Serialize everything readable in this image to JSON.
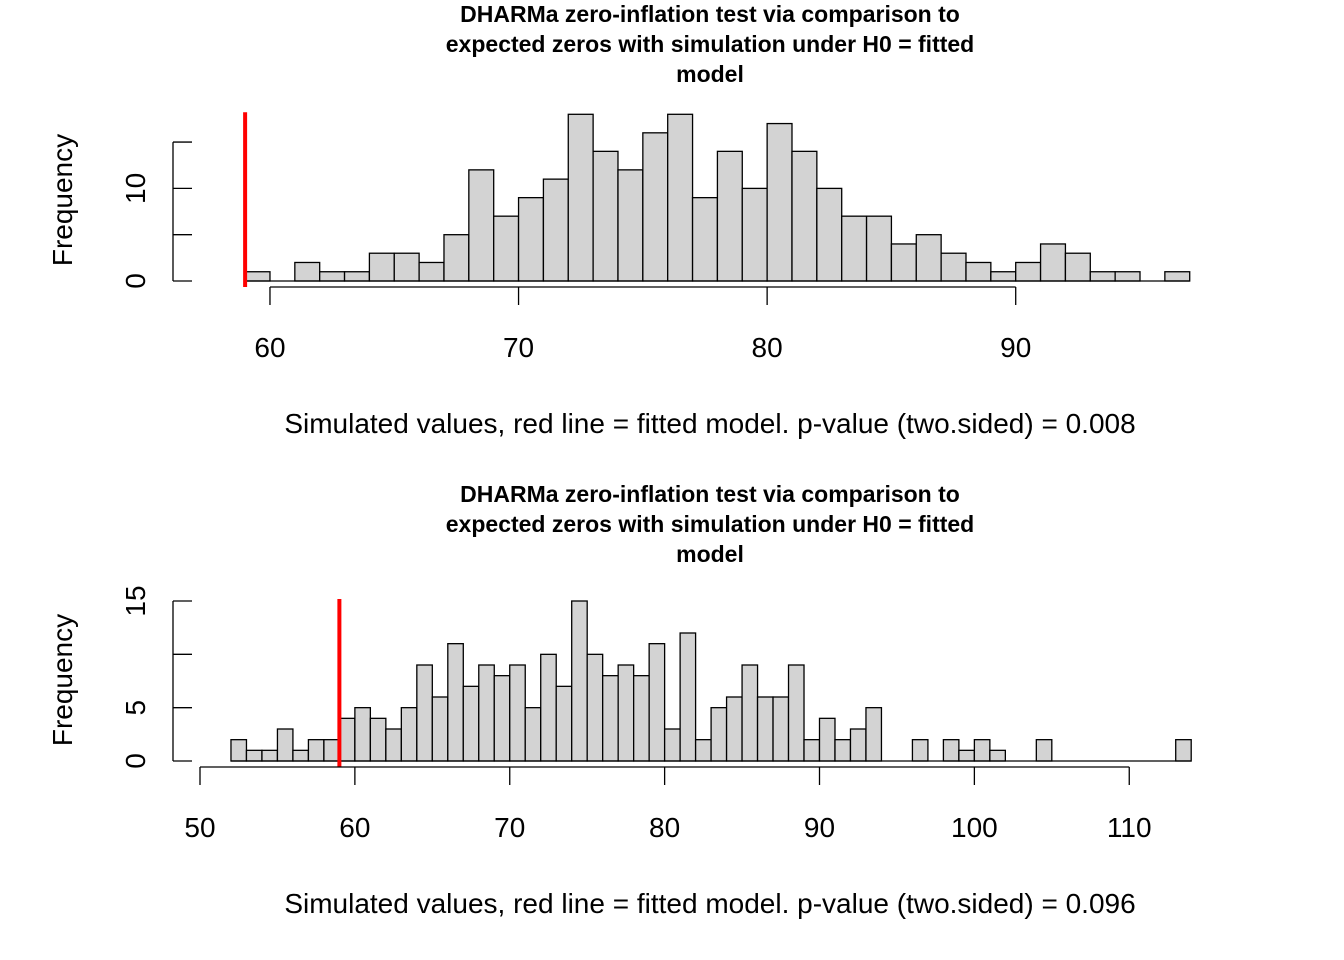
{
  "chart_data": [
    {
      "type": "bar",
      "title_lines": [
        "DHARMa zero-inflation test via comparison to",
        "expected zeros with simulation under H0 = fitted",
        "model"
      ],
      "xlabel": "Simulated values, red line = fitted model. p-value (two.sided) = 0.008",
      "ylabel": "Frequency",
      "bin_start": 59,
      "bin_width": 1,
      "values": [
        1,
        0,
        2,
        1,
        1,
        3,
        3,
        2,
        5,
        12,
        7,
        9,
        11,
        18,
        14,
        12,
        16,
        18,
        9,
        14,
        10,
        17,
        14,
        10,
        7,
        7,
        4,
        5,
        3,
        2,
        1,
        2,
        4,
        3,
        1,
        1,
        0,
        1
      ],
      "observed": 59,
      "xticks": [
        60,
        70,
        80,
        90
      ],
      "xtick_labels": [
        "60",
        "70",
        "80",
        "90"
      ],
      "yticks": [
        0,
        5,
        10,
        15
      ],
      "ytick_labels": [
        "0",
        "",
        "10",
        ""
      ],
      "xlim": [
        58.4,
        97.1
      ],
      "ylim": [
        0,
        18
      ]
    },
    {
      "type": "bar",
      "title_lines": [
        "DHARMa zero-inflation test via comparison to",
        "expected zeros with simulation under H0 = fitted",
        "model"
      ],
      "xlabel": "Simulated values, red line = fitted model. p-value (two.sided) = 0.096",
      "ylabel": "Frequency",
      "bin_start": 52,
      "bin_width": 1,
      "values": [
        2,
        1,
        1,
        3,
        1,
        2,
        2,
        4,
        5,
        4,
        3,
        5,
        9,
        6,
        11,
        7,
        9,
        8,
        9,
        5,
        10,
        7,
        15,
        10,
        8,
        9,
        8,
        11,
        3,
        12,
        2,
        5,
        6,
        9,
        6,
        6,
        9,
        2,
        4,
        2,
        3,
        5,
        0,
        0,
        2,
        0,
        2,
        1,
        2,
        1,
        0,
        0,
        2,
        0,
        0,
        0,
        0,
        0,
        0,
        0,
        0,
        2
      ],
      "observed": 59,
      "xticks": [
        50,
        60,
        70,
        80,
        90,
        100,
        110
      ],
      "xtick_labels": [
        "50",
        "60",
        "70",
        "80",
        "90",
        "100",
        "110"
      ],
      "yticks": [
        0,
        5,
        10,
        15
      ],
      "ytick_labels": [
        "0",
        "5",
        "",
        "15"
      ],
      "xlim": [
        50,
        114
      ],
      "ylim": [
        0,
        15
      ]
    }
  ]
}
